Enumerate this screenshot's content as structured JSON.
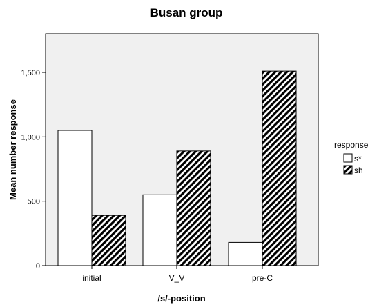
{
  "chart_data": {
    "type": "bar",
    "title": "Busan group",
    "xlabel": "/s/-position",
    "ylabel": "Mean number response",
    "categories": [
      "initial",
      "V_V",
      "pre-C"
    ],
    "series": [
      {
        "name": "s*",
        "values": [
          1.05,
          0.55,
          0.18
        ],
        "fill": "#ffffff",
        "pattern": "none"
      },
      {
        "name": "sh",
        "values": [
          0.39,
          0.89,
          1.51
        ],
        "fill": "#000000",
        "pattern": "diagonal-hatch"
      }
    ],
    "ylim": [
      0,
      1.8
    ],
    "yticks": [
      0,
      0.5,
      1.0,
      1.5
    ],
    "ytick_labels": [
      "0",
      "500",
      "1,000",
      "1,500"
    ],
    "legend": {
      "title": "response",
      "position": "right"
    },
    "grid": false,
    "colors": {
      "plot_background": "#f0f0f0",
      "bar_stroke": "#000000"
    }
  }
}
